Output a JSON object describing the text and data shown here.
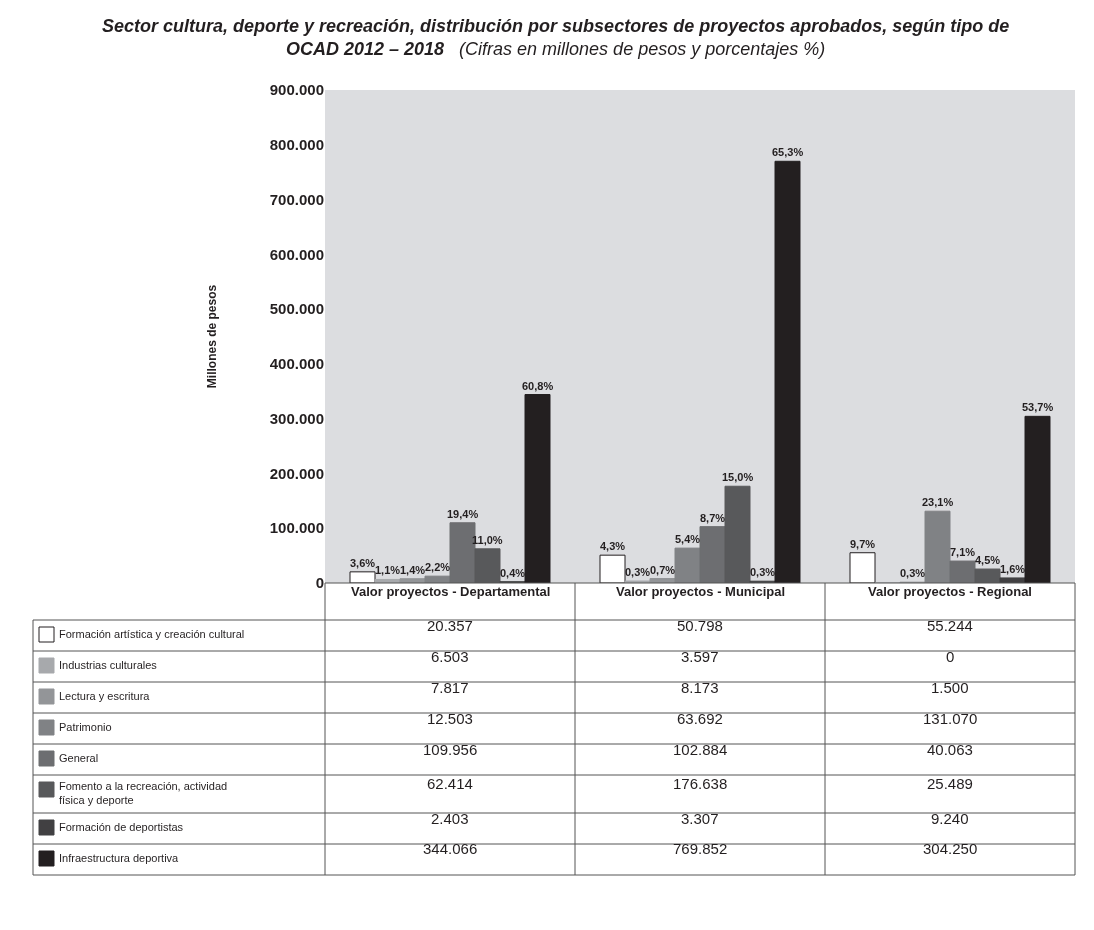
{
  "chart_data": {
    "type": "bar",
    "title": "Sector cultura, deporte y recreación, distribución por subsectores de proyectos aprobados, según tipo de OCAD 2012 – 2018",
    "subtitle": "(Cifras en millones de pesos y porcentajes %)",
    "ylabel": "Millones de pesos",
    "categories": [
      "Valor proyectos - Departamental",
      "Valor proyectos - Municipal",
      "Valor proyectos - Regional"
    ],
    "series": [
      {
        "name": "Formación artística y creación cultural",
        "color": "#ffffff",
        "values": [
          20357,
          50798,
          55244
        ],
        "value_labels": [
          "20.357",
          "50.798",
          "55.244"
        ]
      },
      {
        "name": "Industrias culturales",
        "color": "#a7a9ac",
        "values": [
          6503,
          3597,
          0
        ],
        "value_labels": [
          "6.503",
          "3.597",
          "0"
        ]
      },
      {
        "name": "Lectura y escritura",
        "color": "#939598",
        "values": [
          7817,
          8173,
          1500
        ],
        "value_labels": [
          "7.817",
          "8.173",
          "1.500"
        ]
      },
      {
        "name": "Patrimonio",
        "color": "#808285",
        "values": [
          12503,
          63692,
          131070
        ],
        "value_labels": [
          "12.503",
          "63.692",
          "131.070"
        ]
      },
      {
        "name": "General",
        "color": "#6d6e71",
        "values": [
          109956,
          102884,
          40063
        ],
        "value_labels": [
          "109.956",
          "102.884",
          "40.063"
        ]
      },
      {
        "name": "Fomento a la recreación, actividad física y deporte",
        "color": "#58595b",
        "values": [
          62414,
          176638,
          25489
        ],
        "value_labels": [
          "62.414",
          "176.638",
          "25.489"
        ]
      },
      {
        "name": "Formación de deportistas",
        "color": "#414042",
        "values": [
          2403,
          3307,
          9240
        ],
        "value_labels": [
          "2.403",
          "3.307",
          "9.240"
        ]
      },
      {
        "name": "Infraestructura deportiva",
        "color": "#231f20",
        "values": [
          344066,
          769852,
          304250
        ],
        "value_labels": [
          "344.066",
          "769.852",
          "304.250"
        ]
      }
    ],
    "annotations": [
      "3,6%",
      "1,1%",
      "1,4%",
      "2,2%",
      "19,4%",
      "11,0%",
      "0,4%",
      "60,8%",
      "4,3%",
      "0,3%",
      "0,7%",
      "5,4%",
      "8,7%",
      "15,0%",
      "0,3%",
      "65,3%",
      "9,7%",
      "0,3%",
      "23,1%",
      "7,1%",
      "4,5%",
      "1,6%",
      "53,7%"
    ],
    "ylim": [
      0,
      900000
    ],
    "yticks": [
      {
        "value": 0,
        "label": "0"
      },
      {
        "value": 100000,
        "label": "100.000"
      },
      {
        "value": 200000,
        "label": "200.000"
      },
      {
        "value": 300000,
        "label": "300.000"
      },
      {
        "value": 400000,
        "label": "400.000"
      },
      {
        "value": 500000,
        "label": "500.000"
      },
      {
        "value": 600000,
        "label": "600.000"
      },
      {
        "value": 700000,
        "label": "700.000"
      },
      {
        "value": 800000,
        "label": "800.000"
      },
      {
        "value": 900000,
        "label": "900.000"
      }
    ],
    "grid": false,
    "legend": "bottom left",
    "data_labels": true
  }
}
